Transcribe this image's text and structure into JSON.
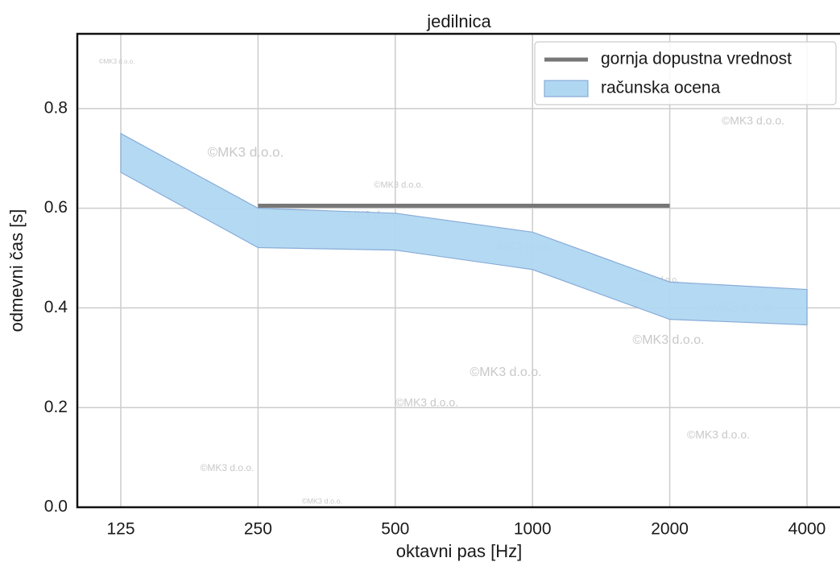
{
  "chart_data": {
    "type": "line",
    "title": "jedilnica",
    "x_label": "oktavni pas [Hz]",
    "y_label": "odmevni čas [s]",
    "categories": [
      "125",
      "250",
      "500",
      "1000",
      "2000",
      "4000"
    ],
    "series": [
      {
        "name": "gornja dopustna vrednost",
        "color": "#777777",
        "values": [
          null,
          0.605,
          0.605,
          0.605,
          0.605,
          null
        ]
      },
      {
        "name": "računska ocena",
        "color": "#b0d7f1",
        "edge_color": "#88acd9",
        "lower": [
          0.672,
          0.521,
          0.516,
          0.477,
          0.377,
          0.366
        ],
        "upper": [
          0.75,
          0.6,
          0.59,
          0.552,
          0.452,
          0.437
        ]
      }
    ],
    "ylim": [
      0,
      0.95
    ],
    "yticks": [
      {
        "value": 0,
        "label": "0.0"
      },
      0.2,
      0.4,
      0.6,
      0.8
    ],
    "grid": true,
    "legend": "upper right",
    "watermarks": [
      "©MK3 d.o.o.",
      "©MK3 d.o.o.",
      "©MK3 d.o.o.",
      "©MK3 d.o.o.",
      "©MK3 d.o.o.",
      "©MK3 d.o.o.",
      "©MK3 d.o.o.",
      "©MK3 d.o.o.",
      "©MK3 d.o.o.",
      "©MK3 d.o.o.",
      "©MK3 d.o.o.",
      "©MK3 d.o.o.",
      "©MK3 d.o.o.",
      "©MK3 d.o.o."
    ]
  }
}
